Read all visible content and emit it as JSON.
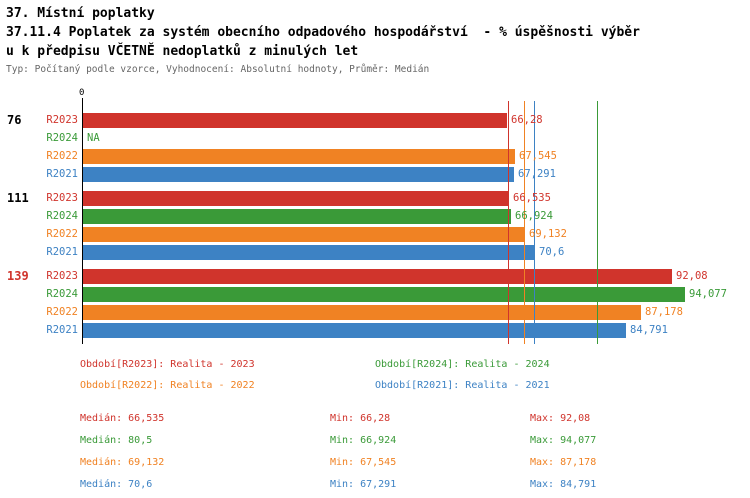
{
  "header": {
    "title_line1": "37. Místní poplatky",
    "title_line2": "37.11.4 Poplatek za systém obecního odpadového hospodářství  - % úspěšnosti výběr",
    "title_line3": "u k předpisu VČETNĚ nedoplatků z minulých let",
    "subtitle": "Typ: Počítaný podle vzorce, Vyhodnocení: Absolutní hodnoty, Průměr: Medián"
  },
  "colors": {
    "R2023": "#d0342c",
    "R2024": "#3a9a38",
    "R2022": "#f08223",
    "R2021": "#3d82c4",
    "axis": "#000000",
    "subtitle_text": "#666666",
    "group_label": "#000000",
    "group_label_highlight": "#d0342c"
  },
  "chart_data": {
    "type": "bar",
    "orientation": "horizontal",
    "unit": "%",
    "x_origin_label": "0",
    "x_range": [
      0,
      100
    ],
    "grid": false,
    "series_order": [
      "R2023",
      "R2024",
      "R2022",
      "R2021"
    ],
    "groups": [
      {
        "label": "76",
        "highlight": false,
        "bars": [
          {
            "series": "R2023",
            "value": 66.28,
            "display": "66,28"
          },
          {
            "series": "R2024",
            "value": null,
            "display": "NA"
          },
          {
            "series": "R2022",
            "value": 67.545,
            "display": "67,545"
          },
          {
            "series": "R2021",
            "value": 67.291,
            "display": "67,291"
          }
        ]
      },
      {
        "label": "111",
        "highlight": false,
        "bars": [
          {
            "series": "R2023",
            "value": 66.535,
            "display": "66,535"
          },
          {
            "series": "R2024",
            "value": 66.924,
            "display": "66,924"
          },
          {
            "series": "R2022",
            "value": 69.132,
            "display": "69,132"
          },
          {
            "series": "R2021",
            "value": 70.6,
            "display": "70,6"
          }
        ]
      },
      {
        "label": "139",
        "highlight": true,
        "bars": [
          {
            "series": "R2023",
            "value": 92.08,
            "display": "92,08"
          },
          {
            "series": "R2024",
            "value": 94.077,
            "display": "94,077"
          },
          {
            "series": "R2022",
            "value": 87.178,
            "display": "87,178"
          },
          {
            "series": "R2021",
            "value": 84.791,
            "display": "84,791"
          }
        ]
      }
    ],
    "median_lines": [
      {
        "series": "R2023",
        "value": 66.535
      },
      {
        "series": "R2024",
        "value": 80.5
      },
      {
        "series": "R2022",
        "value": 69.132
      },
      {
        "series": "R2021",
        "value": 70.6
      }
    ]
  },
  "legend": {
    "items": [
      {
        "series": "R2023",
        "label": "Období[R2023]: Realita - 2023"
      },
      {
        "series": "R2024",
        "label": "Období[R2024]: Realita - 2024"
      },
      {
        "series": "R2022",
        "label": "Období[R2022]: Realita - 2022"
      },
      {
        "series": "R2021",
        "label": "Období[R2021]: Realita - 2021"
      }
    ]
  },
  "stats": {
    "rows": [
      {
        "series": "R2023",
        "median": "Medián: 66,535",
        "min": "Min: 66,28",
        "max": "Max: 92,08"
      },
      {
        "series": "R2024",
        "median": "Medián: 80,5",
        "min": "Min: 66,924",
        "max": "Max: 94,077"
      },
      {
        "series": "R2022",
        "median": "Medián: 69,132",
        "min": "Min: 67,545",
        "max": "Max: 87,178"
      },
      {
        "series": "R2021",
        "median": "Medián: 70,6",
        "min": "Min: 67,291",
        "max": "Max: 84,791"
      }
    ]
  }
}
